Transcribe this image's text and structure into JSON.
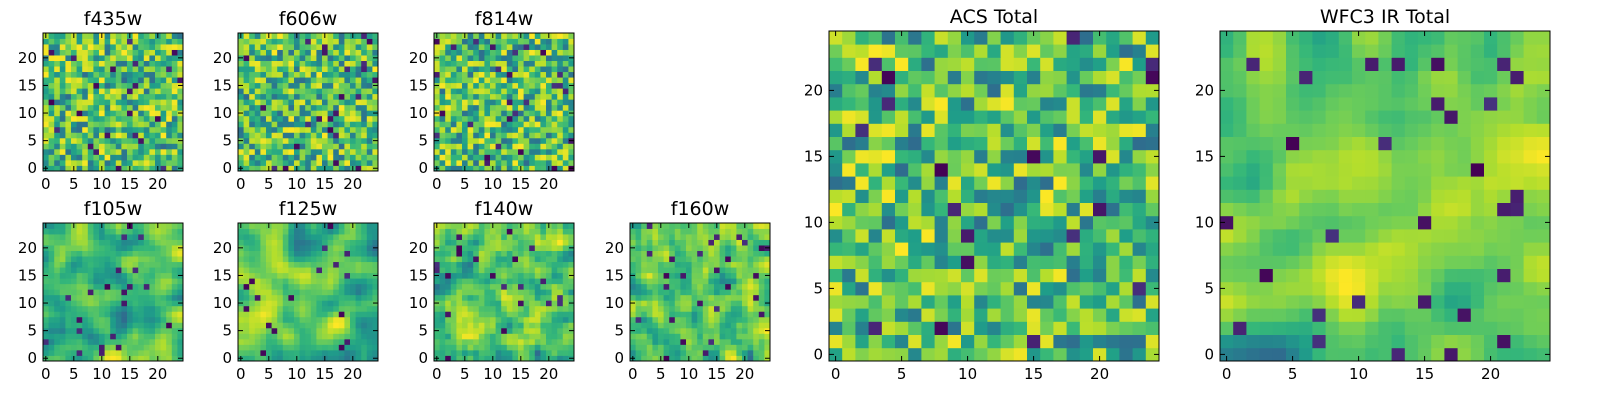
{
  "chart_data": {
    "type": "heatmap",
    "colormap": "viridis",
    "description": "Grid of noise-map heatmaps (25x25 pixel cutouts) per HST filter, plus ACS and WFC3 IR totals",
    "panels": [
      {
        "id": "f435w",
        "title": "f435w",
        "rows": 25,
        "cols": 25,
        "xticks": [
          0,
          5,
          10,
          15,
          20
        ],
        "yticks": [
          0,
          5,
          10,
          15,
          20
        ],
        "smoothness": 0,
        "seed": 11
      },
      {
        "id": "f606w",
        "title": "f606w",
        "rows": 25,
        "cols": 25,
        "xticks": [
          0,
          5,
          10,
          15,
          20
        ],
        "yticks": [
          0,
          5,
          10,
          15,
          20
        ],
        "smoothness": 0,
        "seed": 23
      },
      {
        "id": "f814w",
        "title": "f814w",
        "rows": 25,
        "cols": 25,
        "xticks": [
          0,
          5,
          10,
          15,
          20
        ],
        "yticks": [
          0,
          5,
          10,
          15,
          20
        ],
        "smoothness": 0,
        "seed": 37
      },
      {
        "id": "f105w",
        "title": "f105w",
        "rows": 25,
        "cols": 25,
        "xticks": [
          0,
          5,
          10,
          15,
          20
        ],
        "yticks": [
          0,
          5,
          10,
          15,
          20
        ],
        "smoothness": 2,
        "seed": 41
      },
      {
        "id": "f125w",
        "title": "f125w",
        "rows": 25,
        "cols": 25,
        "xticks": [
          0,
          5,
          10,
          15,
          20
        ],
        "yticks": [
          0,
          5,
          10,
          15,
          20
        ],
        "smoothness": 2,
        "seed": 53
      },
      {
        "id": "f140w",
        "title": "f140w",
        "rows": 25,
        "cols": 25,
        "xticks": [
          0,
          5,
          10,
          15,
          20
        ],
        "yticks": [
          0,
          5,
          10,
          15,
          20
        ],
        "smoothness": 1,
        "seed": 67
      },
      {
        "id": "f160w",
        "title": "f160w",
        "rows": 25,
        "cols": 25,
        "xticks": [
          0,
          5,
          10,
          15,
          20
        ],
        "yticks": [
          0,
          5,
          10,
          15,
          20
        ],
        "smoothness": 1,
        "seed": 79
      },
      {
        "id": "acs_total",
        "title": "ACS Total",
        "rows": 25,
        "cols": 25,
        "xticks": [
          0,
          5,
          10,
          15,
          20
        ],
        "yticks": [
          0,
          5,
          10,
          15,
          20
        ],
        "smoothness": 0,
        "seed": 83
      },
      {
        "id": "wfc3_total",
        "title": "WFC3 IR Total",
        "rows": 25,
        "cols": 25,
        "xticks": [
          0,
          5,
          10,
          15,
          20
        ],
        "yticks": [
          0,
          5,
          10,
          15,
          20
        ],
        "smoothness": 2,
        "seed": 97
      }
    ]
  }
}
